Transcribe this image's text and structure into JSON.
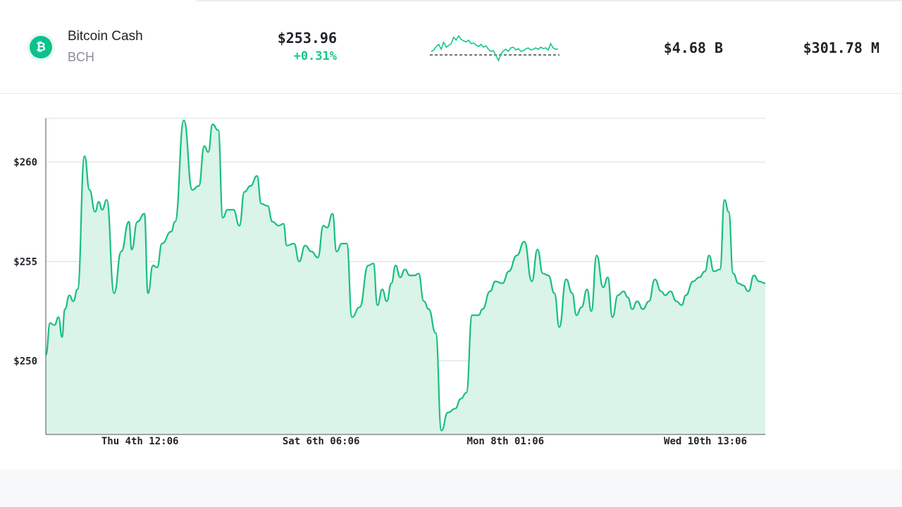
{
  "coin": {
    "name": "Bitcoin Cash",
    "symbol": "BCH",
    "icon": "bitcoin-cash-icon",
    "icon_glyph": "₿",
    "price": "$253.96",
    "change": "+0.31%",
    "market_cap": "$4.68 B",
    "volume": "$301.78 M"
  },
  "colors": {
    "accent": "#16c784",
    "line": "#19bf80",
    "fill": "#daf4e8",
    "brand": "#0ac18e"
  },
  "chart_data": {
    "type": "area",
    "title": "",
    "xlabel": "",
    "ylabel": "",
    "ylim": [
      246.3,
      262.2
    ],
    "yticks": [
      250,
      255,
      260
    ],
    "ytick_labels": [
      "$250",
      "$255",
      "$260"
    ],
    "xticks": [
      {
        "t": 0.1309,
        "label": "Thu 4th 12:06"
      },
      {
        "t": 0.3826,
        "label": "Sat 6th 06:06"
      },
      {
        "t": 0.6389,
        "label": "Mon 8th 01:06"
      },
      {
        "t": 0.9168,
        "label": "Wed 10th 13:06"
      }
    ],
    "grid": true,
    "series": [
      {
        "points": [
          [
            0.0,
            250.3
          ],
          [
            0.006,
            251.9
          ],
          [
            0.012,
            251.8
          ],
          [
            0.0176,
            252.2
          ],
          [
            0.0225,
            251.2
          ],
          [
            0.0265,
            252.6
          ],
          [
            0.0328,
            253.3
          ],
          [
            0.0382,
            253.0
          ],
          [
            0.0441,
            253.6
          ],
          [
            0.0539,
            260.3
          ],
          [
            0.0607,
            258.6
          ],
          [
            0.0686,
            257.5
          ],
          [
            0.0736,
            258.0
          ],
          [
            0.0784,
            257.6
          ],
          [
            0.0846,
            258.1
          ],
          [
            0.095,
            253.4
          ],
          [
            0.1048,
            255.5
          ],
          [
            0.1155,
            257.0
          ],
          [
            0.1194,
            255.6
          ],
          [
            0.1273,
            257.0
          ],
          [
            0.137,
            257.4
          ],
          [
            0.142,
            253.4
          ],
          [
            0.149,
            254.8
          ],
          [
            0.1547,
            254.7
          ],
          [
            0.1615,
            255.9
          ],
          [
            0.1741,
            256.5
          ],
          [
            0.1796,
            257.0
          ],
          [
            0.1919,
            262.1
          ],
          [
            0.2035,
            258.6
          ],
          [
            0.2126,
            258.8
          ],
          [
            0.2204,
            260.8
          ],
          [
            0.2258,
            260.5
          ],
          [
            0.2317,
            261.9
          ],
          [
            0.2396,
            261.6
          ],
          [
            0.246,
            257.2
          ],
          [
            0.2525,
            257.6
          ],
          [
            0.2608,
            257.6
          ],
          [
            0.2691,
            256.8
          ],
          [
            0.276,
            258.5
          ],
          [
            0.2845,
            258.8
          ],
          [
            0.2935,
            259.3
          ],
          [
            0.2995,
            257.9
          ],
          [
            0.3082,
            257.8
          ],
          [
            0.315,
            257.0
          ],
          [
            0.3237,
            256.8
          ],
          [
            0.3303,
            256.9
          ],
          [
            0.335,
            255.8
          ],
          [
            0.345,
            255.9
          ],
          [
            0.3522,
            255.0
          ],
          [
            0.3604,
            255.8
          ],
          [
            0.3692,
            255.5
          ],
          [
            0.3781,
            255.2
          ],
          [
            0.3858,
            256.8
          ],
          [
            0.391,
            256.7
          ],
          [
            0.3985,
            257.4
          ],
          [
            0.4041,
            255.5
          ],
          [
            0.4115,
            255.9
          ],
          [
            0.4183,
            255.9
          ],
          [
            0.4256,
            252.2
          ],
          [
            0.4361,
            252.7
          ],
          [
            0.4482,
            254.8
          ],
          [
            0.4552,
            254.9
          ],
          [
            0.461,
            252.8
          ],
          [
            0.4676,
            253.6
          ],
          [
            0.4739,
            253.0
          ],
          [
            0.4803,
            253.9
          ],
          [
            0.4862,
            254.8
          ],
          [
            0.4926,
            254.2
          ],
          [
            0.4991,
            254.6
          ],
          [
            0.5058,
            254.3
          ],
          [
            0.5128,
            254.3
          ],
          [
            0.518,
            254.4
          ],
          [
            0.5255,
            253.0
          ],
          [
            0.5322,
            252.6
          ],
          [
            0.5419,
            251.4
          ],
          [
            0.5499,
            246.5
          ],
          [
            0.5588,
            247.4
          ],
          [
            0.569,
            247.6
          ],
          [
            0.5769,
            248.1
          ],
          [
            0.5845,
            248.4
          ],
          [
            0.5925,
            252.3
          ],
          [
            0.6015,
            252.3
          ],
          [
            0.607,
            252.6
          ],
          [
            0.6174,
            253.5
          ],
          [
            0.625,
            254.0
          ],
          [
            0.6346,
            253.9
          ],
          [
            0.6435,
            254.5
          ],
          [
            0.6546,
            255.3
          ],
          [
            0.6651,
            256.0
          ],
          [
            0.6755,
            254.0
          ],
          [
            0.6834,
            255.6
          ],
          [
            0.6908,
            254.4
          ],
          [
            0.6984,
            254.3
          ],
          [
            0.707,
            253.4
          ],
          [
            0.7137,
            251.7
          ],
          [
            0.7232,
            254.1
          ],
          [
            0.7317,
            253.4
          ],
          [
            0.7374,
            252.3
          ],
          [
            0.7447,
            252.7
          ],
          [
            0.7523,
            253.6
          ],
          [
            0.7582,
            252.5
          ],
          [
            0.7656,
            255.3
          ],
          [
            0.7746,
            253.7
          ],
          [
            0.7811,
            254.2
          ],
          [
            0.7876,
            252.2
          ],
          [
            0.7952,
            253.3
          ],
          [
            0.8031,
            253.5
          ],
          [
            0.8088,
            253.2
          ],
          [
            0.8151,
            252.6
          ],
          [
            0.8219,
            253.0
          ],
          [
            0.8299,
            252.6
          ],
          [
            0.8383,
            253.0
          ],
          [
            0.8465,
            254.1
          ],
          [
            0.8552,
            253.5
          ],
          [
            0.861,
            253.3
          ],
          [
            0.8681,
            253.5
          ],
          [
            0.8764,
            253.0
          ],
          [
            0.8838,
            252.8
          ],
          [
            0.8896,
            253.3
          ],
          [
            0.8996,
            254.0
          ],
          [
            0.9081,
            254.2
          ],
          [
            0.9162,
            254.5
          ],
          [
            0.9219,
            255.3
          ],
          [
            0.9285,
            254.5
          ],
          [
            0.937,
            254.6
          ],
          [
            0.9434,
            258.1
          ],
          [
            0.9491,
            257.5
          ],
          [
            0.9553,
            254.4
          ],
          [
            0.9628,
            253.9
          ],
          [
            0.969,
            253.8
          ],
          [
            0.9766,
            253.5
          ],
          [
            0.9842,
            254.3
          ],
          [
            0.9914,
            254.0
          ],
          [
            1.0,
            253.9
          ]
        ]
      }
    ],
    "sparkline": [
      0.62,
      0.58,
      0.48,
      0.42,
      0.56,
      0.36,
      0.5,
      0.45,
      0.4,
      0.22,
      0.3,
      0.18,
      0.28,
      0.32,
      0.35,
      0.3,
      0.4,
      0.38,
      0.44,
      0.48,
      0.42,
      0.5,
      0.46,
      0.56,
      0.62,
      0.6,
      0.74,
      0.88,
      0.7,
      0.6,
      0.56,
      0.62,
      0.52,
      0.5,
      0.58,
      0.54,
      0.62,
      0.6,
      0.55,
      0.52,
      0.58,
      0.56,
      0.52,
      0.56,
      0.5,
      0.54,
      0.52,
      0.58,
      0.4,
      0.52,
      0.56,
      0.55
    ]
  }
}
